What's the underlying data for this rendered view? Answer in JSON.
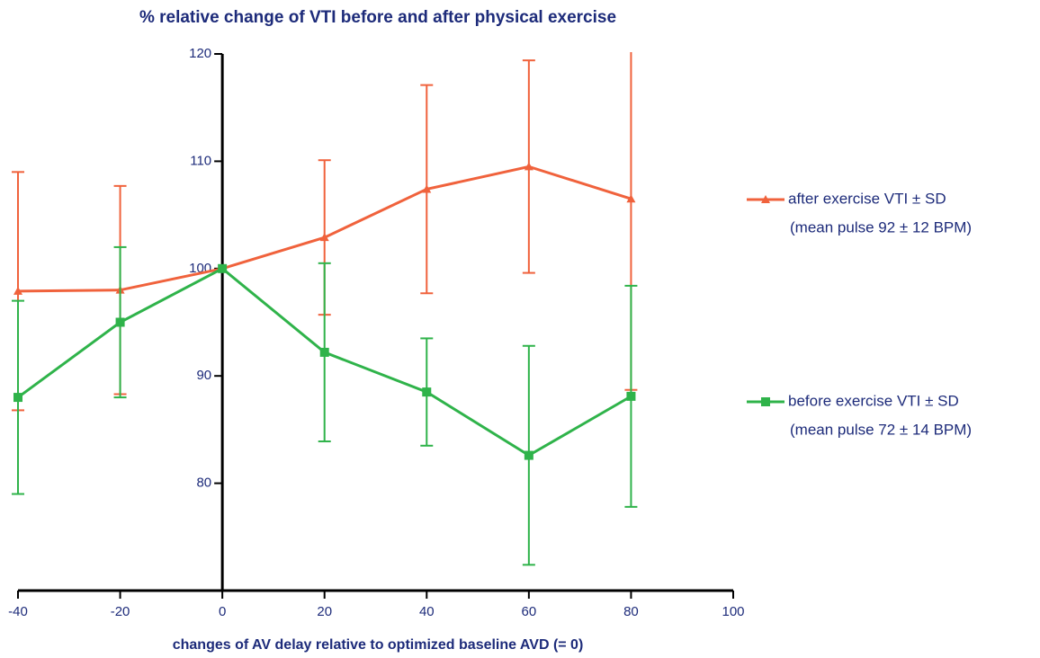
{
  "chart_data": {
    "type": "line",
    "title": "% relative change of VTI before and after physical exercise",
    "x_label": "changes of AV delay relative to optimized baseline AVD (= 0)",
    "x": [
      -40,
      -20,
      0,
      20,
      40,
      60,
      80
    ],
    "xlim": [
      -40,
      100
    ],
    "xticks": [
      -40,
      -20,
      0,
      20,
      40,
      60,
      80,
      100
    ],
    "ylim": [
      70,
      120
    ],
    "yticks": [
      80,
      90,
      100,
      110,
      120
    ],
    "series": [
      {
        "name": "after exercise VTI ± SD",
        "note": "(mean pulse 92 ± 12 BPM)",
        "color": "#f0623c",
        "marker": "triangle",
        "values": [
          97.9,
          98,
          100,
          102.9,
          107.4,
          109.5,
          106.5
        ],
        "errors": [
          11.1,
          9.7,
          null,
          7.2,
          9.7,
          9.9,
          17.8
        ]
      },
      {
        "name": "before exercise VTI ± SD",
        "note": "(mean pulse 72 ± 14 BPM)",
        "color": "#2fb34a",
        "marker": "square",
        "values": [
          88,
          95,
          100,
          92.2,
          88.5,
          82.6,
          88.1
        ],
        "errors": [
          9,
          7,
          null,
          8.3,
          5,
          10.2,
          10.3
        ]
      }
    ]
  }
}
